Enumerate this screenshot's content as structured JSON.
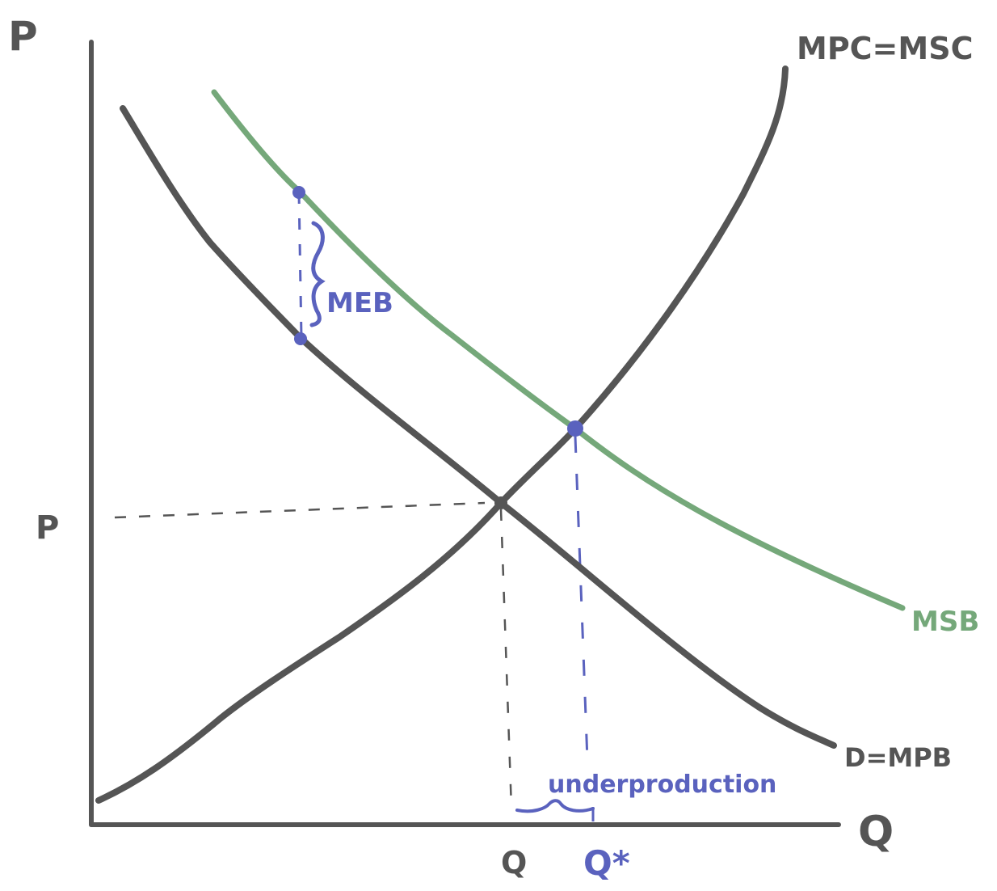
{
  "axes": {
    "y_label": "P",
    "x_label": "Q"
  },
  "curves": {
    "supply_label": "MPC=MSC",
    "demand_label": "D=MPB",
    "social_benefit_label": "MSB"
  },
  "annotations": {
    "external_benefit": "MEB",
    "gap": "underproduction"
  },
  "ticks": {
    "price": "P",
    "market_quantity": "Q",
    "optimal_quantity": "Q*"
  },
  "colors": {
    "curve": "#555555",
    "social_benefit": "#75a87a",
    "annotation": "#5a62be"
  }
}
